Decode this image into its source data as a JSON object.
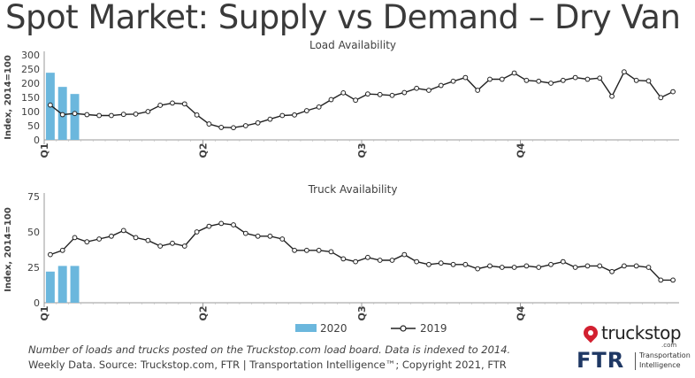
{
  "title": "Spot Market: Supply vs Demand – Dry Van",
  "footnote": "Number of loads and trucks posted on the Truckstop.com load board. Data is indexed to 2014.",
  "source": "Weekly Data. Source: Truckstop.com, FTR | Transportation Intelligence™; Copyright 2021, FTR",
  "logos": {
    "truckstop_name": "truckstop",
    "truckstop_suffix": ".com",
    "ftr_name": "FTR",
    "ftr_tagline_1": "Transportation",
    "ftr_tagline_2": "Intelligence"
  },
  "legend": {
    "series_2020": "2020",
    "series_2019": "2019",
    "position": "bottom-center"
  },
  "colors": {
    "bar_2020": "#6bb7dd",
    "line_2019": "#222222",
    "marker_fill": "#ffffff",
    "axis": "#999999",
    "text": "#404040"
  },
  "chart_data": [
    {
      "type": "bar+line",
      "title": "Load Availability",
      "ylabel": "Index, 2014=100",
      "ylim": [
        0,
        300
      ],
      "yticks": [
        0,
        50,
        100,
        150,
        200,
        250,
        300
      ],
      "quarters": [
        "Q1",
        "Q2",
        "Q3",
        "Q4"
      ],
      "weeks": 52,
      "grid": false,
      "series": [
        {
          "name": "2020",
          "kind": "bar",
          "values": [
            237,
            187,
            162
          ]
        },
        {
          "name": "2019",
          "kind": "line",
          "values": [
            123,
            89,
            93,
            89,
            86,
            86,
            90,
            91,
            100,
            122,
            130,
            127,
            88,
            56,
            44,
            43,
            50,
            60,
            73,
            86,
            88,
            103,
            116,
            142,
            166,
            140,
            162,
            160,
            157,
            167,
            182,
            175,
            192,
            207,
            220,
            175,
            214,
            214,
            236,
            210,
            207,
            200,
            210,
            220,
            214,
            218,
            154,
            240,
            210,
            208,
            149,
            170
          ]
        }
      ]
    },
    {
      "type": "bar+line",
      "title": "Truck Availability",
      "ylabel": "Index, 2014=100",
      "ylim": [
        0,
        75
      ],
      "yticks": [
        0,
        25,
        50,
        75
      ],
      "quarters": [
        "Q1",
        "Q2",
        "Q3",
        "Q4"
      ],
      "weeks": 52,
      "grid": false,
      "series": [
        {
          "name": "2020",
          "kind": "bar",
          "values": [
            22,
            26,
            26
          ]
        },
        {
          "name": "2019",
          "kind": "line",
          "values": [
            34,
            37,
            46,
            43,
            45,
            47,
            51,
            46,
            44,
            40,
            42,
            40,
            50,
            54,
            56,
            55,
            49,
            47,
            47,
            45,
            37,
            37,
            37,
            36,
            31,
            29,
            32,
            30,
            30,
            34,
            29,
            27,
            28,
            27,
            27,
            24,
            26,
            25,
            25,
            26,
            25,
            27,
            29,
            25,
            26,
            26,
            22,
            26,
            26,
            25,
            16,
            16
          ]
        }
      ]
    }
  ]
}
